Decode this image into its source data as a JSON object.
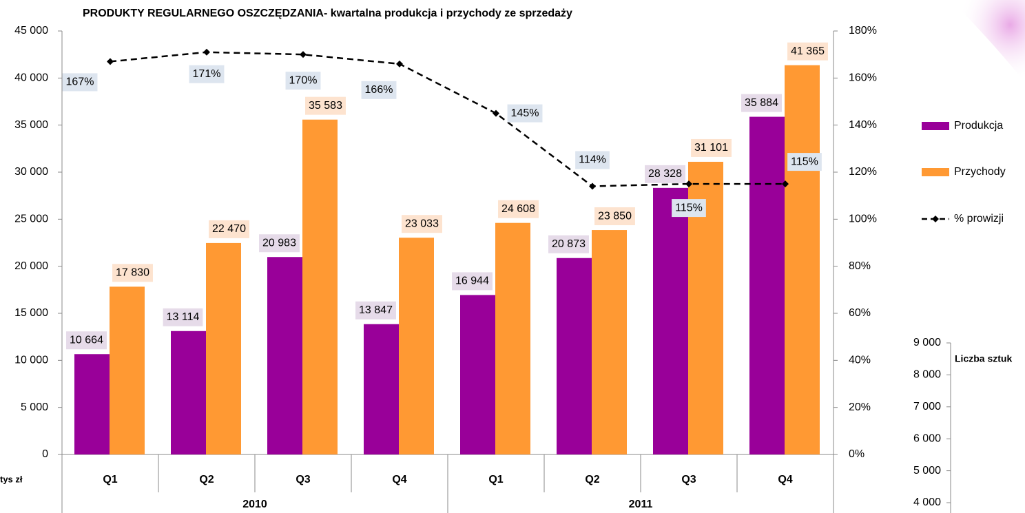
{
  "chart_data": [
    {
      "type": "bar",
      "title": "PRODUKTY REGULARNEGO OSZCZĘDZANIA-  kwartalna produkcja i przychody ze sprzedaży",
      "y_label": "tys zł",
      "categories": [
        "Q1",
        "Q2",
        "Q3",
        "Q4",
        "Q1",
        "Q2",
        "Q3",
        "Q4"
      ],
      "groups": [
        "2010",
        "2011"
      ],
      "series": [
        {
          "name": "Produkcja",
          "type": "bar",
          "color": "#990099",
          "values": [
            10664,
            13114,
            20983,
            13847,
            16944,
            20873,
            28328,
            35884
          ],
          "value_labels": [
            "10 664",
            "13 114",
            "20 983",
            "13 847",
            "16 944",
            "20 873",
            "28 328",
            "35 884"
          ]
        },
        {
          "name": "Przychody",
          "type": "bar",
          "color": "#ff9933",
          "values": [
            17830,
            22470,
            35583,
            23033,
            24608,
            23850,
            31101,
            41365
          ],
          "value_labels": [
            "17 830",
            "22 470",
            "35 583",
            "23 033",
            "24 608",
            "23 850",
            "31 101",
            "41 365"
          ]
        },
        {
          "name": "% prowizji",
          "type": "line",
          "axis": "y2",
          "color": "#000000",
          "values": [
            167,
            171,
            170,
            166,
            145,
            114,
            115,
            115
          ],
          "value_labels": [
            "167%",
            "171%",
            "170%",
            "166%",
            "145%",
            "114%",
            "115%",
            "115%"
          ]
        }
      ],
      "ylim": [
        0,
        45000
      ],
      "yticks": [
        0,
        {
          "value": 5000,
          "label": "5 000"
        },
        {
          "value": 10000,
          "label": "10 000"
        },
        {
          "value": 15000,
          "label": "15 000"
        },
        {
          "value": 20000,
          "label": "20 000"
        },
        {
          "value": 25000,
          "label": "25 000"
        },
        {
          "value": 30000,
          "label": "30 000"
        },
        {
          "value": 35000,
          "label": "35 000"
        },
        {
          "value": 40000,
          "label": "40 000"
        },
        {
          "value": 45000,
          "label": "45 000"
        }
      ],
      "y2lim": [
        0,
        180
      ],
      "y2ticks": [
        {
          "value": 0,
          "label": "0%"
        },
        {
          "value": 20,
          "label": "20%"
        },
        {
          "value": 40,
          "label": "40%"
        },
        {
          "value": 60,
          "label": "60%"
        },
        {
          "value": 80,
          "label": "80%"
        },
        {
          "value": 100,
          "label": "100%"
        },
        {
          "value": 120,
          "label": "120%"
        },
        {
          "value": 140,
          "label": "140%"
        },
        {
          "value": 160,
          "label": "160%"
        },
        {
          "value": 180,
          "label": "180%"
        }
      ],
      "legend": "right"
    },
    {
      "type": "bar",
      "title": "Liczba sztuk",
      "ylim": [
        4000,
        9000
      ],
      "yticks": [
        {
          "value": 4000,
          "label": "4 000"
        },
        {
          "value": 5000,
          "label": "5 000"
        },
        {
          "value": 6000,
          "label": "6 000"
        },
        {
          "value": 7000,
          "label": "7 000"
        },
        {
          "value": 8000,
          "label": "8 000"
        },
        {
          "value": 9000,
          "label": "9 000"
        }
      ]
    }
  ]
}
